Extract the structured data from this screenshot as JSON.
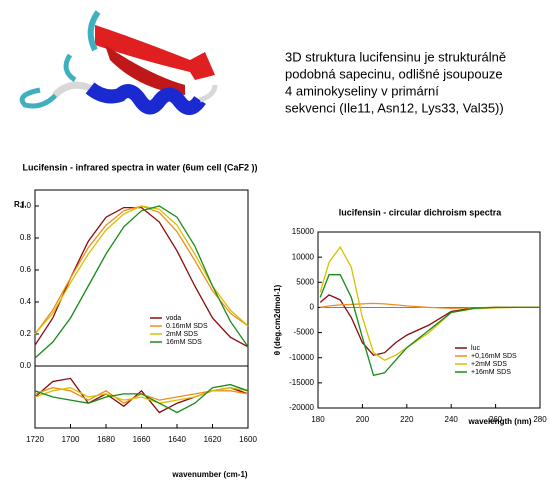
{
  "text_lines": [
    "3D struktura lucifensinu je strukturálně",
    "podobná sapecinu, odlišné jsoupouze",
    "4 aminokyseliny v primární",
    "sekvenci (Ile11, Asn12, Lys33, Val35))"
  ],
  "chart_data": [
    {
      "type": "line",
      "title": "Lucifensin - infrared spectra in water (6um cell (CaF2 ))",
      "y_label": "R.I.",
      "x": [
        1720,
        1710,
        1700,
        1690,
        1680,
        1670,
        1660,
        1650,
        1640,
        1630,
        1620,
        1610,
        1600
      ],
      "xlim": [
        1720,
        1600
      ],
      "ylim": [
        0,
        1.1
      ],
      "yticks": [
        {
          "value": 0,
          "label": "0.0"
        },
        {
          "value": 0.2,
          "label": "0.2"
        },
        {
          "value": 0.4,
          "label": "0.4"
        },
        {
          "value": 0.6,
          "label": "0.6"
        },
        {
          "value": 0.8,
          "label": "0.8"
        },
        {
          "value": 1,
          "label": "1.0"
        }
      ],
      "legend": "lower-right",
      "series": [
        {
          "name": "voda",
          "color": "#8b0a0a",
          "values": [
            0.13,
            0.3,
            0.55,
            0.78,
            0.93,
            0.99,
            0.99,
            0.9,
            0.72,
            0.5,
            0.3,
            0.18,
            0.12
          ]
        },
        {
          "name": "0.16mM SDS",
          "color": "#f08c1e",
          "values": [
            0.2,
            0.35,
            0.55,
            0.74,
            0.88,
            0.97,
            1.0,
            0.96,
            0.84,
            0.66,
            0.47,
            0.33,
            0.25
          ]
        },
        {
          "name": "2mM SDS",
          "color": "#d8c000",
          "values": [
            0.2,
            0.33,
            0.52,
            0.7,
            0.85,
            0.95,
            1.0,
            0.98,
            0.88,
            0.7,
            0.5,
            0.35,
            0.25
          ]
        },
        {
          "name": "16mM SDS",
          "color": "#1a8a1a",
          "values": [
            0.05,
            0.15,
            0.3,
            0.5,
            0.7,
            0.87,
            0.97,
            1.0,
            0.93,
            0.75,
            0.5,
            0.28,
            0.12
          ]
        }
      ]
    },
    {
      "type": "line",
      "x_label": "wavenumber (cm-1)",
      "x": [
        1720,
        1710,
        1700,
        1690,
        1680,
        1670,
        1660,
        1650,
        1640,
        1630,
        1620,
        1610,
        1600
      ],
      "xlim": [
        1720,
        1600
      ],
      "xticks": [
        1720,
        1700,
        1680,
        1660,
        1640,
        1620,
        1600
      ],
      "ylim": [
        -1,
        1
      ],
      "series": [
        {
          "color": "#8b0a0a",
          "values": [
            0.0,
            0.5,
            0.6,
            -0.2,
            0.1,
            -0.3,
            0.2,
            -0.5,
            -0.2,
            0.0,
            0.2,
            0.3,
            0.1
          ]
        },
        {
          "color": "#f08c1e",
          "values": [
            0.1,
            0.3,
            0.2,
            -0.1,
            0.2,
            -0.2,
            0.1,
            -0.1,
            0.0,
            0.1,
            0.2,
            0.2,
            0.1
          ]
        },
        {
          "color": "#d8c000",
          "values": [
            0.0,
            0.2,
            0.3,
            0.0,
            0.1,
            -0.1,
            0.0,
            -0.2,
            -0.1,
            0.0,
            0.2,
            0.3,
            0.2
          ]
        },
        {
          "color": "#1a8a1a",
          "values": [
            0.2,
            0.0,
            -0.1,
            -0.2,
            0.0,
            0.1,
            0.1,
            -0.2,
            -0.5,
            -0.2,
            0.3,
            0.4,
            0.2
          ]
        }
      ]
    },
    {
      "type": "line",
      "title": "lucifensin - circular dichroism spectra",
      "x_label": "wavelength (nm)",
      "y_label": "θ (deg.cm2dmol-1)",
      "x": [
        181,
        185,
        190,
        195,
        200,
        205,
        210,
        215,
        220,
        230,
        240,
        250,
        260,
        270,
        280
      ],
      "xlim": [
        180,
        280
      ],
      "xticks": [
        180,
        200,
        220,
        240,
        260,
        280
      ],
      "ylim": [
        -20000,
        15000
      ],
      "yticks": [
        15000,
        10000,
        5000,
        0,
        -5000,
        -10000,
        -15000,
        -20000
      ],
      "legend": "lower-right",
      "series": [
        {
          "name": "luc",
          "color": "#8b0a0a",
          "values": [
            1000,
            2500,
            1500,
            -2000,
            -7000,
            -9500,
            -9000,
            -7000,
            -5500,
            -3500,
            -800,
            -100,
            0,
            0,
            0
          ]
        },
        {
          "name": "+0,16mM SDS",
          "color": "#f08c1e",
          "values": [
            0,
            300,
            500,
            600,
            700,
            800,
            700,
            500,
            300,
            0,
            -200,
            -100,
            0,
            0,
            0
          ]
        },
        {
          "name": "+2mM SDS",
          "color": "#d8c000",
          "values": [
            3000,
            9000,
            12000,
            8000,
            -2000,
            -9000,
            -10500,
            -9500,
            -8000,
            -5000,
            -1000,
            -300,
            -100,
            0,
            0
          ]
        },
        {
          "name": "+16mM SDS",
          "color": "#1a8a1a",
          "values": [
            2000,
            6500,
            6500,
            2000,
            -6000,
            -13500,
            -13000,
            -10500,
            -8000,
            -4500,
            -1000,
            -200,
            0,
            0,
            0
          ]
        }
      ]
    }
  ]
}
